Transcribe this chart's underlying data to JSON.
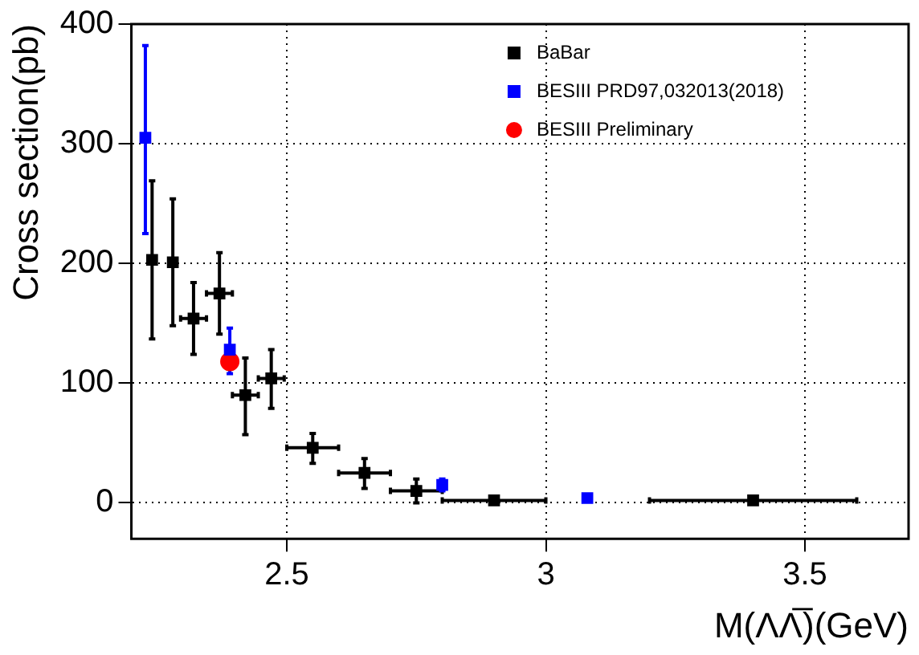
{
  "chart_data": {
    "type": "scatter",
    "xlabel": "M(ΛΛ̅)(GeV)",
    "ylabel": "Cross section(pb)",
    "xlim": [
      2.2,
      3.7
    ],
    "ylim": [
      -30,
      400
    ],
    "xticks": [
      2.5,
      3,
      3.5
    ],
    "yticks": [
      0,
      100,
      200,
      300,
      400
    ],
    "grid": true,
    "legend": "top right",
    "series": [
      {
        "name": "BaBar",
        "color": "#000000",
        "marker": "square",
        "x": [
          2.24,
          2.28,
          2.32,
          2.37,
          2.42,
          2.47,
          2.55,
          2.65,
          2.75,
          2.9,
          3.4
        ],
        "values": [
          203,
          201,
          154,
          175,
          90,
          104,
          46,
          25,
          10,
          2,
          2
        ],
        "errors": [
          [
            137,
            269
          ],
          [
            148,
            254
          ],
          [
            124,
            184
          ],
          [
            141,
            209
          ],
          [
            57,
            121
          ],
          [
            79,
            128
          ],
          [
            33,
            58
          ],
          [
            12,
            37
          ],
          [
            0,
            20
          ],
          null,
          null
        ],
        "xerrors": [
          null,
          null,
          0.025,
          0.025,
          0.025,
          0.025,
          0.05,
          0.05,
          0.05,
          0.1,
          0.2
        ]
      },
      {
        "name": "BESIII PRD97,032013(2018)",
        "color": "#0000ff",
        "marker": "square",
        "x": [
          2.227,
          2.39,
          2.8,
          3.08
        ],
        "values": [
          305,
          128,
          15,
          4
        ],
        "errors": [
          [
            225,
            382
          ],
          [
            108,
            146
          ],
          [
            10,
            20
          ],
          null
        ]
      },
      {
        "name": "BESIII Preliminary",
        "color": "#ff0000",
        "marker": "circle",
        "x": [
          2.39
        ],
        "values": [
          118
        ]
      }
    ]
  }
}
